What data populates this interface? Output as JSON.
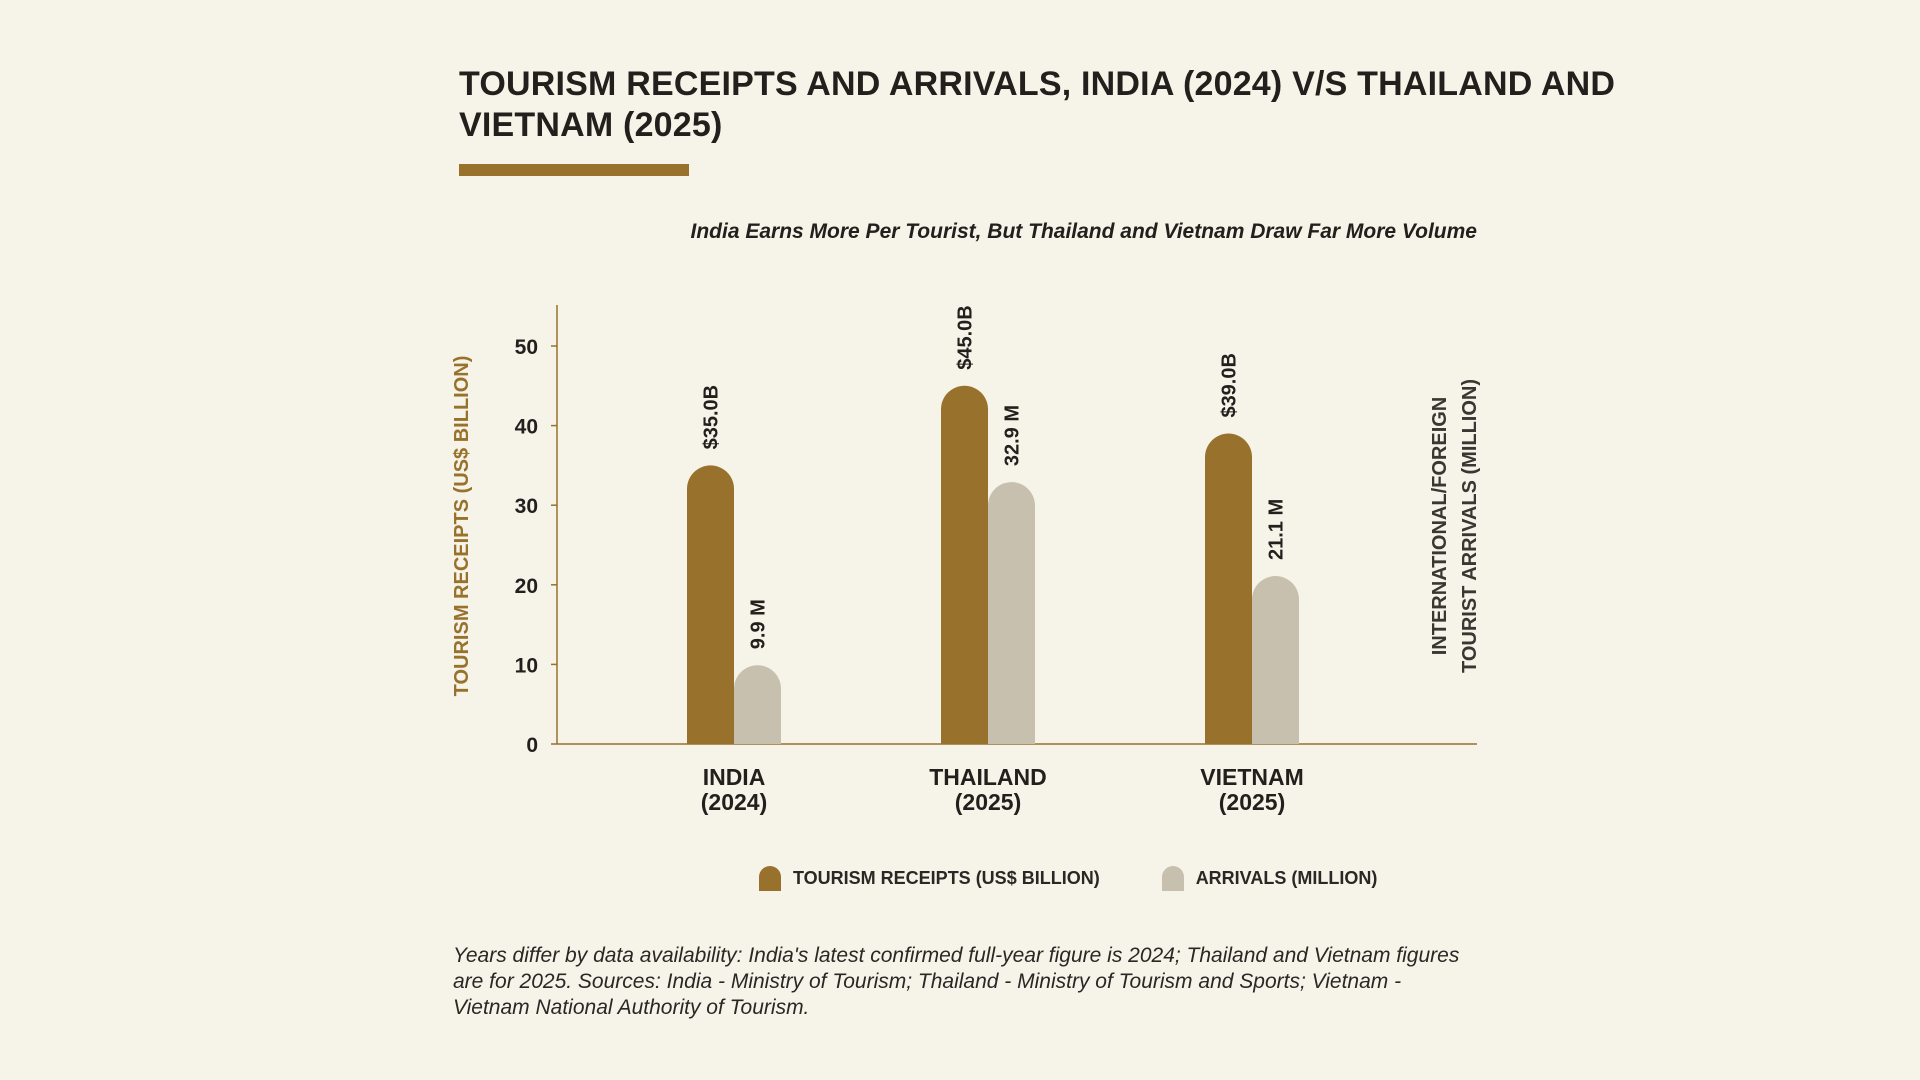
{
  "title": "TOURISM RECEIPTS AND ARRIVALS, INDIA (2024) V/S THAILAND AND VIETNAM (2025)",
  "subtitle": "India Earns More Per Tourist, But Thailand and Vietnam Draw Far More Volume",
  "footnote": "Years differ by data availability: India's latest confirmed full-year figure is 2024; Thailand and Vietnam figures are for 2025. Sources: India - Ministry of Tourism; Thailand - Ministry of Tourism and Sports; Vietnam - Vietnam National Authority of Tourism.",
  "colors": {
    "accent": "#98722C",
    "receipts": "#98722C",
    "arrivals": "#C8C0AE",
    "axis": "#98722C",
    "text": "#221F1C",
    "background": "#F6F3E9"
  },
  "chart_data": {
    "type": "bar",
    "categories": [
      "INDIA\n(2024)",
      "THAILAND\n(2025)",
      "VIETNAM\n(2025)"
    ],
    "category_lines": [
      [
        "INDIA",
        "(2024)"
      ],
      [
        "THAILAND",
        "(2025)"
      ],
      [
        "VIETNAM",
        "(2025)"
      ]
    ],
    "series": [
      {
        "name": "TOURISM RECEIPTS (US$ BILLION)",
        "values": [
          35.0,
          45.0,
          39.0
        ],
        "labels": [
          "$35.0B",
          "$45.0B",
          "$39.0B"
        ],
        "color": "#98722C"
      },
      {
        "name": "ARRIVALS (MILLION)",
        "values": [
          9.9,
          32.9,
          21.1
        ],
        "labels": [
          "9.9 M",
          "32.9 M",
          "21.1 M"
        ],
        "color": "#C8C0AE"
      }
    ],
    "ylabel": "TOURISM RECEIPTS (US$ BILLION)",
    "ylabel_right": [
      "INTERNATIONAL/FOREIGN",
      "TOURIST ARRIVALS (MILLION)"
    ],
    "ylim": [
      0,
      55
    ],
    "yticks": [
      0,
      10,
      20,
      30,
      40,
      50
    ],
    "grid": false,
    "legend_position": "bottom-center"
  }
}
